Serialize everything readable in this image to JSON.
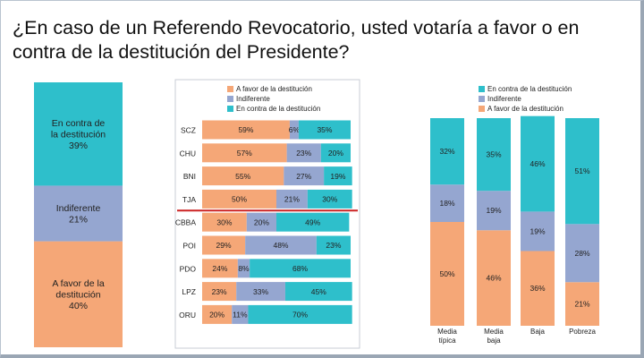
{
  "title": "¿En caso de un Referendo Revocatorio, usted votaría a favor o en contra de la destitución del Presidente?",
  "colors": {
    "favor": "#f5a777",
    "indiferente": "#95a6d0",
    "contra": "#2ebfcb",
    "separator": "#cc2222"
  },
  "chart_data": [
    {
      "type": "bar",
      "stacked": true,
      "orientation": "vertical",
      "categories": [
        ""
      ],
      "series": [
        {
          "name": "A favor de la destitución",
          "label": "A favor de la\ndestitución\n40%",
          "values": [
            40
          ]
        },
        {
          "name": "Indiferente",
          "label": "Indiferente\n21%",
          "values": [
            21
          ]
        },
        {
          "name": "En contra de la destitución",
          "label": "En contra de\nla destitución\n39%",
          "values": [
            39
          ]
        }
      ]
    },
    {
      "type": "bar",
      "stacked": true,
      "orientation": "horizontal",
      "legend": [
        "A favor de la destitución",
        "Indiferente",
        "En contra de la destitución"
      ],
      "categories": [
        "SCZ",
        "CHU",
        "BNI",
        "TJA",
        "CBBA",
        "POI",
        "PDO",
        "LPZ",
        "ORU"
      ],
      "series": [
        {
          "name": "A favor de la destitución",
          "values": [
            59,
            57,
            55,
            50,
            30,
            29,
            24,
            23,
            20
          ]
        },
        {
          "name": "Indiferente",
          "values": [
            6,
            23,
            27,
            21,
            20,
            48,
            8,
            33,
            11
          ]
        },
        {
          "name": "En contra de la destitución",
          "values": [
            35,
            20,
            19,
            30,
            49,
            23,
            68,
            45,
            70
          ]
        }
      ]
    },
    {
      "type": "bar",
      "stacked": true,
      "orientation": "vertical",
      "legend": [
        "En contra de la destitución",
        "Indiferente",
        "A favor de la destitución"
      ],
      "categories": [
        "Media\ntípica",
        "Media\nbaja",
        "Baja",
        "Pobreza"
      ],
      "series": [
        {
          "name": "A favor de la destitución",
          "values": [
            50,
            46,
            36,
            21
          ]
        },
        {
          "name": "Indiferente",
          "values": [
            18,
            19,
            19,
            28
          ]
        },
        {
          "name": "En contra de la destitución",
          "values": [
            32,
            35,
            46,
            51
          ]
        }
      ]
    }
  ]
}
